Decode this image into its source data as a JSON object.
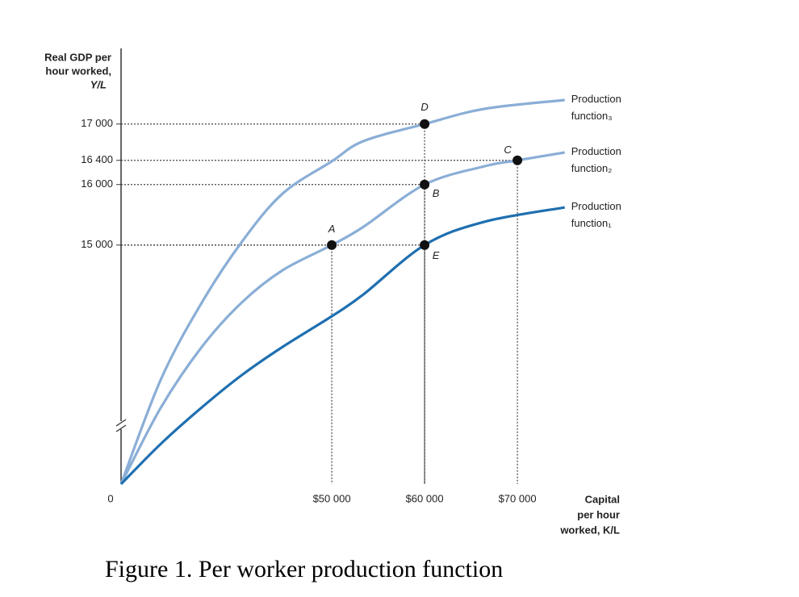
{
  "chart_data": {
    "type": "line",
    "y_label": [
      "Real GDP per",
      "hour worked,",
      "Y/L"
    ],
    "x_label": [
      "Capital",
      "per hour",
      "worked, K/L"
    ],
    "origin_label": "0",
    "caption": "Figure 1. Per worker production function",
    "xlim": [
      27300,
      77000
    ],
    "ylim": [
      11050,
      18250
    ],
    "xticks": [
      {
        "value": 50000,
        "label": "$50 000"
      },
      {
        "value": 60000,
        "label": "$60 000"
      },
      {
        "value": 70000,
        "label": "$70 000"
      }
    ],
    "yticks": [
      {
        "value": 15000,
        "label": "15 000"
      },
      {
        "value": 16000,
        "label": "16 000"
      },
      {
        "value": 16400,
        "label": "16 400"
      },
      {
        "value": 17000,
        "label": "17 000"
      }
    ],
    "series": [
      {
        "name": "Production function₃",
        "color": "#8aaed6",
        "x": [
          27300,
          31600,
          36000,
          40300,
          44700,
          50000,
          53400,
          60000,
          66400,
          75100
        ],
        "values": [
          11050,
          12783,
          14050,
          15050,
          15850,
          16383,
          16717,
          17000,
          17250,
          17397
        ]
      },
      {
        "name": "Production function₂",
        "color": "#8aaed6",
        "x": [
          27300,
          31600,
          36000,
          40300,
          44700,
          50000,
          53400,
          60000,
          66400,
          70000,
          75100
        ],
        "values": [
          11050,
          12317,
          13317,
          14050,
          14583,
          15000,
          15300,
          16000,
          16300,
          16400,
          16530
        ]
      },
      {
        "name": "Production function₁",
        "color": "#1f6fb0",
        "x": [
          27300,
          31600,
          36000,
          40300,
          44700,
          50000,
          53400,
          60000,
          66400,
          75100
        ],
        "values": [
          11050,
          11717,
          12317,
          12850,
          13317,
          13823,
          14183,
          15000,
          15383,
          15623
        ]
      }
    ],
    "points": [
      {
        "label": "A",
        "x": 50000,
        "y": 15000
      },
      {
        "label": "B",
        "x": 60000,
        "y": 16000
      },
      {
        "label": "C",
        "x": 70000,
        "y": 16400
      },
      {
        "label": "D",
        "x": 60000,
        "y": 17000
      },
      {
        "label": "E",
        "x": 60000,
        "y": 15000
      }
    ]
  }
}
